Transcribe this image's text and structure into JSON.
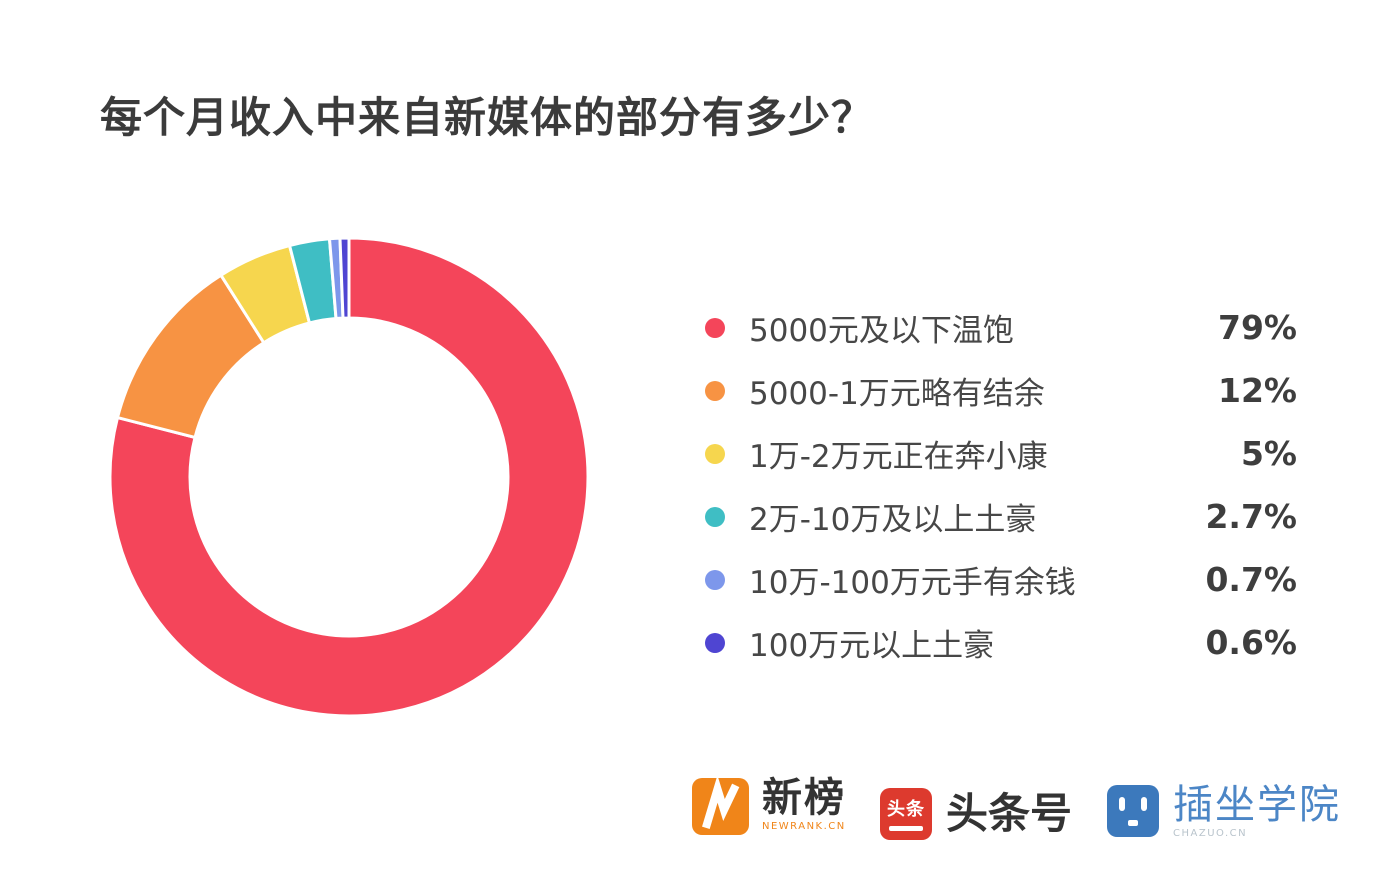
{
  "title": "每个月收入中来自新媒体的部分有多少？",
  "chart_data": {
    "type": "pie",
    "donut": true,
    "start_angle_deg": 0,
    "direction": "clockwise",
    "legend_position": "right",
    "title": "每个月收入中来自新媒体的部分有多少？",
    "categories": [
      "5000元及以下温饱",
      "5000-1万元略有结余",
      "1万-2万元正在奔小康",
      "2万-10万及以上土豪",
      "10万-100万元手有余钱",
      "100万元以上土豪"
    ],
    "values": [
      79,
      12,
      5,
      2.7,
      0.7,
      0.6
    ],
    "value_labels": [
      "79%",
      "12%",
      "5%",
      "2.7%",
      "0.7%",
      "0.6%"
    ],
    "colors": [
      "#f4455a",
      "#f79343",
      "#f6d64e",
      "#3fbec4",
      "#7d97eb",
      "#4f45d2"
    ]
  },
  "legend": {
    "items": [
      {
        "label": "5000元及以下温饱",
        "value": "79%",
        "color": "#f4455a"
      },
      {
        "label": "5000-1万元略有结余",
        "value": "12%",
        "color": "#f79343"
      },
      {
        "label": "1万-2万元正在奔小康",
        "value": "5%",
        "color": "#f6d64e"
      },
      {
        "label": "2万-10万及以上土豪",
        "value": "2.7%",
        "color": "#3fbec4"
      },
      {
        "label": "10万-100万元手有余钱",
        "value": "0.7%",
        "color": "#7d97eb"
      },
      {
        "label": "100万元以上土豪",
        "value": "0.6%",
        "color": "#4f45d2"
      }
    ]
  },
  "footer": {
    "logos": [
      {
        "name": "newrank",
        "text": "新榜",
        "subtext": "NEWRANK.CN"
      },
      {
        "name": "toutiao",
        "icon_text": "头条",
        "text": "头条号"
      },
      {
        "name": "chazuo",
        "text": "插坐学院",
        "subtext": "CHAZUO.CN"
      }
    ]
  },
  "style_colors": {
    "background": "#ffffff",
    "title_text": "#3b3b3b",
    "legend_text": "#474747",
    "newrank_orange": "#f08519",
    "toutiao_red": "#dd3a2e",
    "chazuo_blue": "#3c79bc"
  }
}
